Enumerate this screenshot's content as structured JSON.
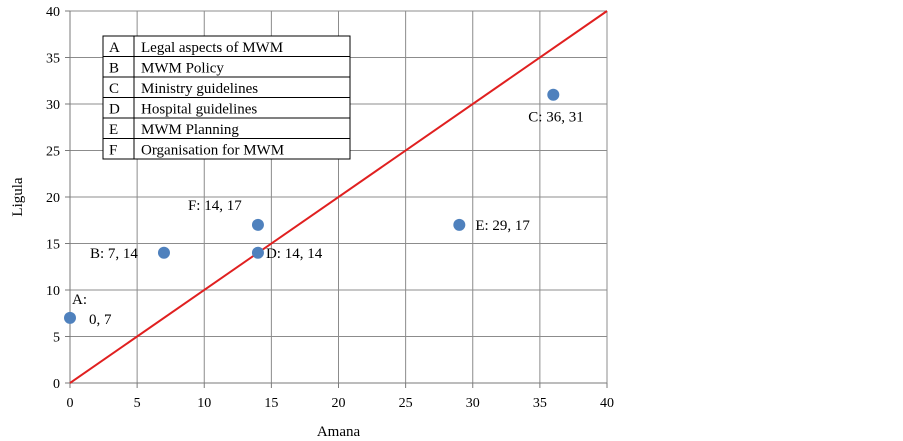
{
  "chart_data": {
    "type": "scatter",
    "title": "",
    "xlabel": "Amana",
    "ylabel": "Ligula",
    "xlim": [
      0,
      40
    ],
    "ylim": [
      0,
      40
    ],
    "xticks": [
      0,
      5,
      10,
      15,
      20,
      25,
      30,
      35,
      40
    ],
    "yticks": [
      0,
      5,
      10,
      15,
      20,
      25,
      30,
      35,
      40
    ],
    "grid": true,
    "point_color": "#4f81bd",
    "line_color": "#e02020",
    "points": [
      {
        "id": "A",
        "x": 0,
        "y": 7,
        "label_lines": [
          "A:",
          "0, 7"
        ]
      },
      {
        "id": "B",
        "x": 7,
        "y": 14,
        "label_lines": [
          "B: 7, 14"
        ]
      },
      {
        "id": "C",
        "x": 36,
        "y": 31,
        "label_lines": [
          "C: 36, 31"
        ]
      },
      {
        "id": "D",
        "x": 14,
        "y": 14,
        "label_lines": [
          "D: 14, 14"
        ]
      },
      {
        "id": "E",
        "x": 29,
        "y": 17,
        "label_lines": [
          "E: 29, 17"
        ]
      },
      {
        "id": "F",
        "x": 14,
        "y": 17,
        "label_lines": [
          "F: 14, 17"
        ]
      }
    ],
    "reference_line": {
      "from": [
        0,
        0
      ],
      "to": [
        40,
        40
      ]
    },
    "legend_table": {
      "placement": "top-left",
      "rows": [
        {
          "key": "A",
          "text": "Legal aspects of MWM"
        },
        {
          "key": "B",
          "text": "MWM Policy"
        },
        {
          "key": "C",
          "text": "Ministry guidelines"
        },
        {
          "key": "D",
          "text": "Hospital guidelines"
        },
        {
          "key": "E",
          "text": "MWM Planning"
        },
        {
          "key": "F",
          "text": "Organisation for MWM"
        }
      ]
    }
  }
}
